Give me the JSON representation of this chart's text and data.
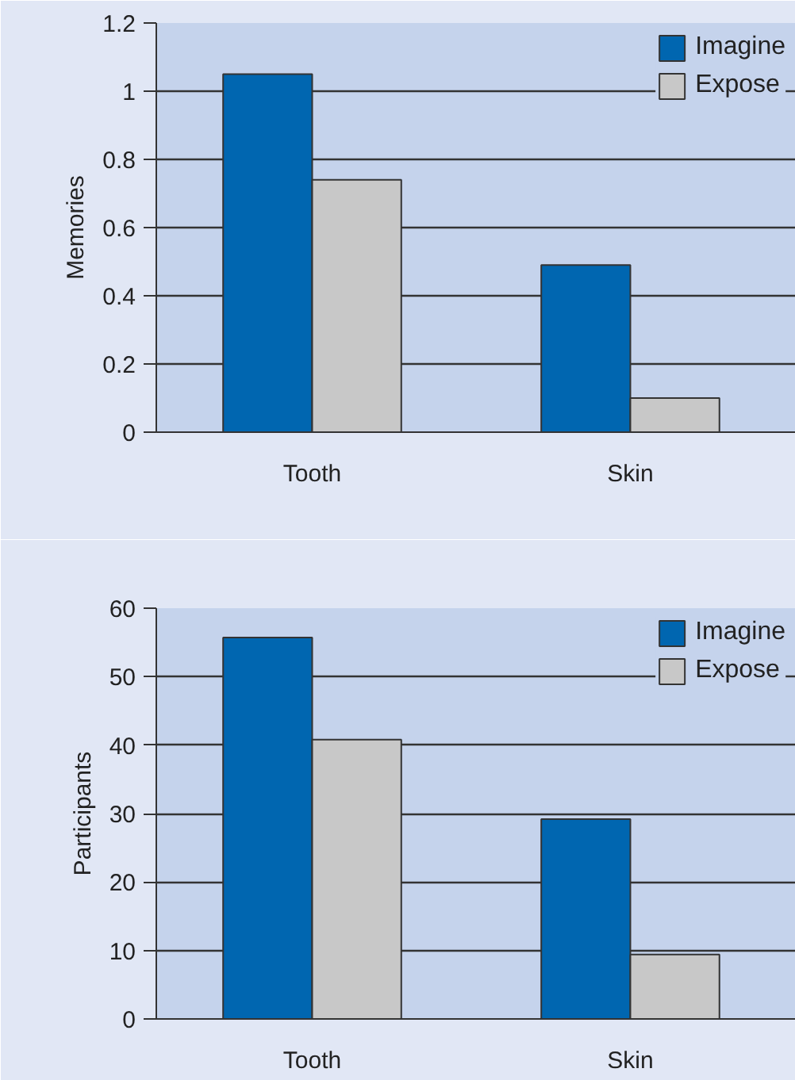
{
  "chart_data": [
    {
      "type": "bar",
      "categories": [
        "Tooth",
        "Skin"
      ],
      "ylabel": "Memories",
      "ylim": [
        0,
        1.2
      ],
      "yticks": [
        0,
        0.2,
        0.4,
        0.6,
        0.8,
        1,
        1.2
      ],
      "grid": "y",
      "legend": "top right",
      "series": [
        {
          "name": "Imagine",
          "color": "#0066b0",
          "values": [
            1.05,
            0.49
          ]
        },
        {
          "name": "Expose",
          "color": "#c8c8c8",
          "values": [
            0.74,
            0.1
          ]
        }
      ]
    },
    {
      "type": "bar",
      "categories": [
        "Tooth",
        "Skin"
      ],
      "ylabel": "Participants",
      "ylim": [
        0,
        60
      ],
      "yticks": [
        0,
        10,
        20,
        30,
        40,
        50,
        60
      ],
      "grid": "y",
      "legend": "top right",
      "series": [
        {
          "name": "Imagine",
          "color": "#0066b0",
          "values": [
            55.7,
            29.2
          ]
        },
        {
          "name": "Expose",
          "color": "#c8c8c8",
          "values": [
            40.8,
            9.4
          ]
        }
      ]
    }
  ]
}
